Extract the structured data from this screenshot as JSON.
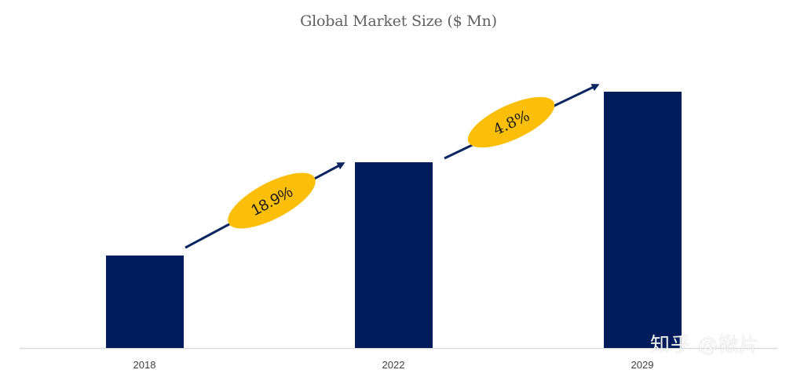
{
  "chart_data": {
    "type": "bar",
    "title": "Global Market Size ($ Mn)",
    "xlabel": "",
    "ylabel": "",
    "categories": [
      "2018",
      "2022",
      "2029"
    ],
    "values": [
      118,
      237,
      327
    ],
    "value_note": "No y-axis shown; values are relative bar heights estimated from pixels",
    "bar_color": "#001c5c",
    "grid": false,
    "legend": null,
    "annotations": [
      {
        "type": "growth-arrow",
        "from": "2018",
        "to": "2022",
        "label": "18.9%",
        "ellipse_color": "#fbbf0a",
        "arrow_color": "#0b2660"
      },
      {
        "type": "growth-arrow",
        "from": "2022",
        "to": "2029",
        "label": "4.8%",
        "ellipse_color": "#fbbf0a",
        "arrow_color": "#0b2660"
      }
    ]
  },
  "watermark": "知乎 @楸片"
}
